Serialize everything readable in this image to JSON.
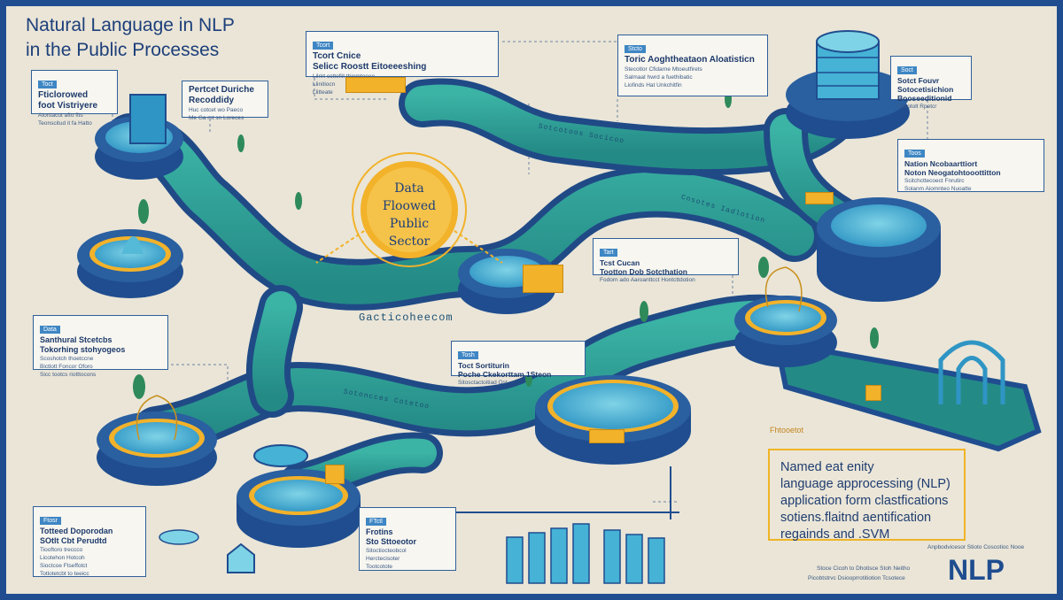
{
  "title": {
    "line1": "Natural Language in NLP",
    "line2": "in the Public Processes"
  },
  "center": {
    "line1": "Data",
    "line2": "Floowed",
    "line3": "Public",
    "line4": "Sector"
  },
  "cards": [
    {
      "tag": "Toct",
      "title": "Fticlorowed\nfoot Vistriyere",
      "lines": "Atorttacut afto fits\nTeonscitud it fa Hatto"
    },
    {
      "tag": "",
      "title": "Pertcet Duriche\nRecoddidy",
      "lines": "Huc cotcet wo Paeco\nMe Ga mt sn Loreces"
    },
    {
      "tag": "Tcort",
      "title": "Tcort Cnice\nSelicc Roostt Eitoeeeshing",
      "lines": "Lilrirt ccttofiit thiomtoeee\nLlinitiocn\nLlitteate"
    },
    {
      "tag": "Stcto",
      "title": "Toric Aoghtheataon Aloatisticn",
      "lines": "Stecotlor Cfidarne Mtoeutfirets\nSalmaat hwrd a fuethibatic\nLiofinds Hat Unkchitfin"
    },
    {
      "tag": "Soct",
      "title": "Sotct Fouvr\nSotocetisichion\nBooseeditionid",
      "lines": "Hccotolt Rpetcr"
    },
    {
      "tag": "Toos",
      "title": "Nation Ncobaarttiort\nNoton Neogatohtooottitton",
      "lines": "Scitchcttecoect Fnrutirc\nSolanm Aiomnteo Nuoatte"
    },
    {
      "tag": "Tart",
      "title": "Tcst Cucan\nTootton Dob Sotcthation",
      "lines": "Fodorn ado Aaroanttcct Hontcttdotion"
    },
    {
      "tag": "Data",
      "title": "Santhural Stcetcbs\nTokorhing stohyogeos",
      "lines": "Scoshotch thoetccne\nBictlott Foncor Oforo\nSicc tootcs riotttocons"
    },
    {
      "tag": "Tosh",
      "title": "Toct Sortiturin\nPoche Ckekorttam 1Steon",
      "lines": "Sitosctactoitiad Ost"
    },
    {
      "tag": "Ftosr",
      "title": "Totteed Doporodan\nSOtlt Cbt Perudtd",
      "lines": "Tiooftoro treccco\nLicotehon Hotcoh\nSioctcoe Ftseffotct\nTotlotetcbt to teeicc"
    },
    {
      "tag": "FTctl",
      "title": "Frotins\nSto Sttoeotor",
      "lines": "Sitoctiocteobcol\nHerctecisoter\nTootcotote"
    }
  ],
  "road_labels": [
    "Gacticoheecom",
    "Sotcotoos Socicoo",
    "Cnsotes Iadlotion",
    "Sotoncces Cotetoo"
  ],
  "info": {
    "kicker": "Fhtooetot",
    "line1": "Named eat enity",
    "line2": "language approcessing (NLP)",
    "line3": "application form clastfications",
    "line4": "sotiens.flaitnd aentification",
    "line5": "regainds and .SVM"
  },
  "footer": {
    "line1": "Anpbodvicesor Stioto Coscotioc Nooe",
    "line2": "Stoce Cicoh to Dhotisce Stoh Neitho",
    "line3": "Picobtstrvc Dsiooprrotitiotion Tcsotece",
    "logo": "NLP"
  },
  "colors": {
    "navy": "#1f4d8f",
    "teal": "#2ea59a",
    "cyan": "#45b2d6",
    "yellow": "#f2b22a",
    "background": "#eae5d7"
  }
}
